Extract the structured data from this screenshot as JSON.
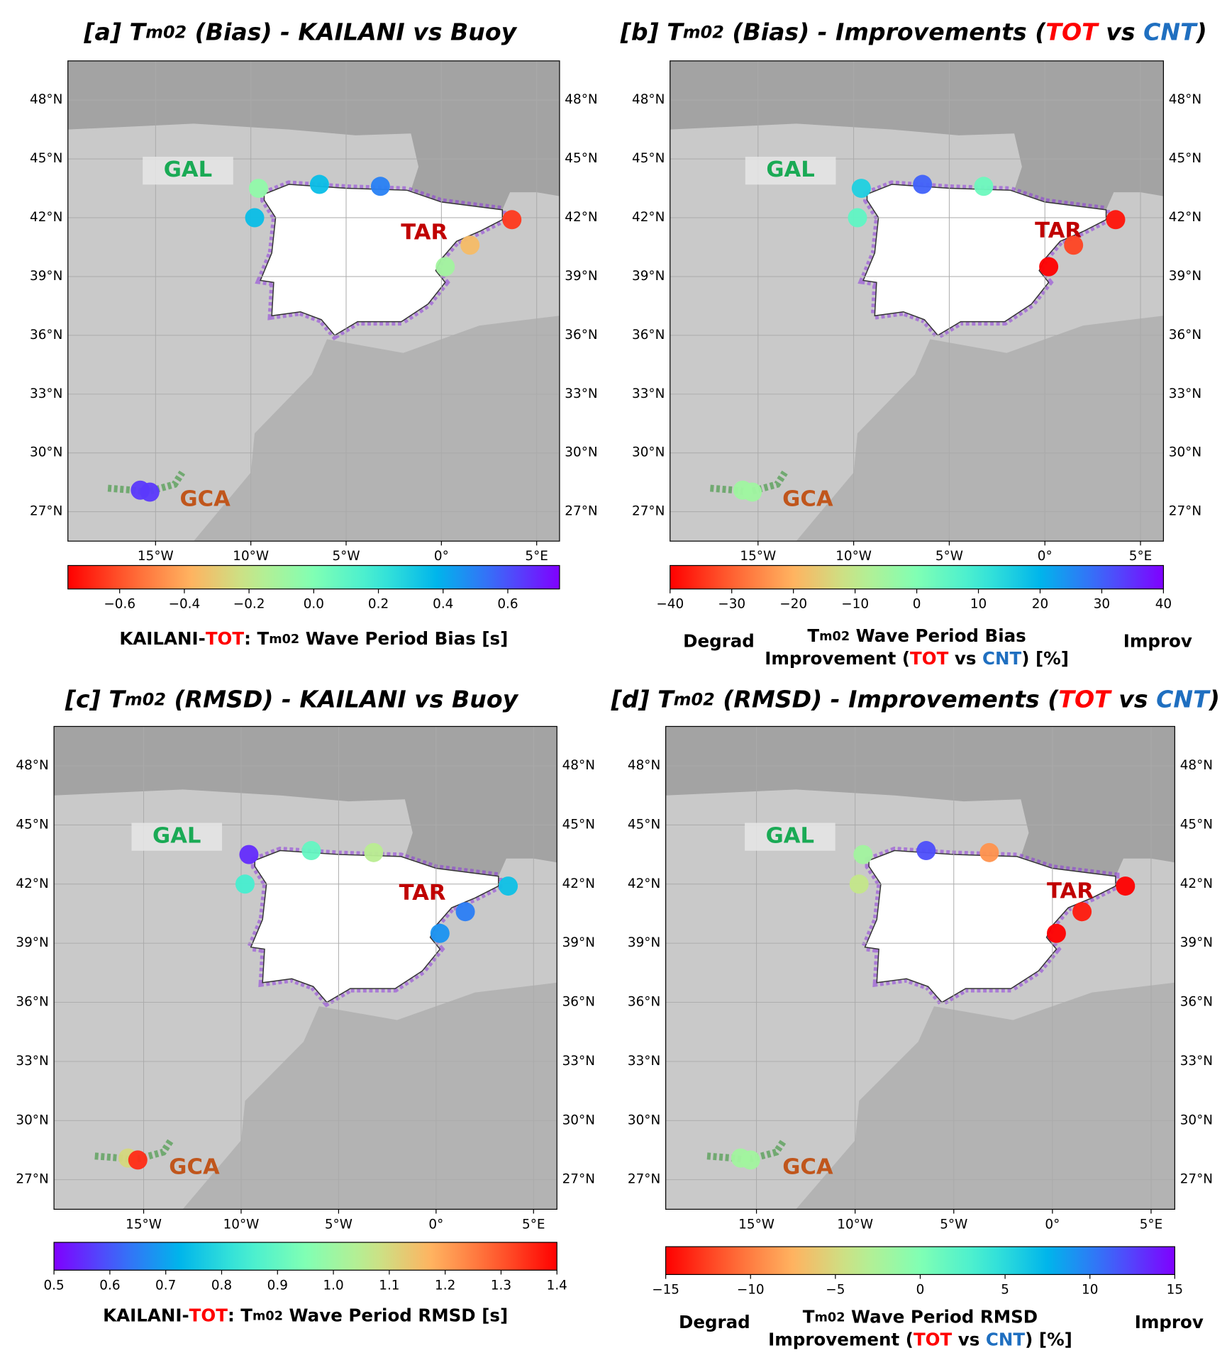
{
  "chart_data": [
    {
      "type": "map",
      "title": [
        {
          "text": "[a] T"
        },
        {
          "text": "m02",
          "small": true
        },
        {
          "text": " (Bias) - KAILANI vs Buoy"
        }
      ],
      "xlim": [
        -19.6,
        6.2
      ],
      "xticks": [
        {
          "value": -15,
          "label": "15°W"
        },
        {
          "value": -10,
          "label": "10°W"
        },
        {
          "value": -5,
          "label": "5°W"
        },
        {
          "value": 0,
          "label": "0°"
        },
        {
          "value": 5,
          "label": "5°E"
        }
      ],
      "ylim": [
        25.5,
        50
      ],
      "yticks": [
        {
          "value": 27,
          "label": "27°N"
        },
        {
          "value": 30,
          "label": "30°N"
        },
        {
          "value": 33,
          "label": "33°N"
        },
        {
          "value": 36,
          "label": "36°N"
        },
        {
          "value": 39,
          "label": "39°N"
        },
        {
          "value": 42,
          "label": "42°N"
        },
        {
          "value": 45,
          "label": "45°N"
        },
        {
          "value": 48,
          "label": "48°N"
        }
      ],
      "grid": true,
      "regions": [
        {
          "text": "GAL",
          "color": "#1aaa55"
        },
        {
          "text": "TAR",
          "color": "#c00000"
        },
        {
          "text": "GCA",
          "color": "#c0561c"
        }
      ],
      "stations": {
        "x": [
          -9.6,
          -9.8,
          -6.4,
          -3.2,
          3.7,
          1.5,
          0.2,
          -15.8,
          -15.3
        ],
        "y": [
          43.5,
          42.0,
          43.7,
          43.6,
          41.9,
          40.6,
          39.5,
          28.1,
          28.0
        ],
        "values": [
          -0.05,
          0.35,
          0.35,
          0.5,
          -0.65,
          -0.35,
          -0.1,
          0.65,
          0.65
        ]
      },
      "colorbar": {
        "cmap": "rainbow_r",
        "lim": [
          -0.76,
          0.76
        ],
        "ticks": [
          {
            "value": -0.6,
            "label": "−0.6"
          },
          {
            "value": -0.4,
            "label": "−0.4"
          },
          {
            "value": -0.2,
            "label": "−0.2"
          },
          {
            "value": 0,
            "label": "0.0"
          },
          0.2,
          0.4,
          0.6
        ],
        "label": [
          [
            {
              "text": "KAILANI-"
            },
            {
              "text": "TOT",
              "color": "#ff0000"
            },
            {
              "text": ": T"
            },
            {
              "text": "m02",
              "small": true
            },
            {
              "text": " Wave Period Bias [s]"
            }
          ]
        ]
      }
    },
    {
      "type": "map",
      "title": [
        {
          "text": "[b] T"
        },
        {
          "text": "m02",
          "small": true
        },
        {
          "text": " (Bias) - Improvements ("
        },
        {
          "text": "TOT",
          "color": "#ff0000"
        },
        {
          "text": " vs "
        },
        {
          "text": "CNT",
          "color": "#1f6fc0"
        },
        {
          "text": ")"
        }
      ],
      "xlim": [
        -19.6,
        6.2
      ],
      "xticks": [
        {
          "value": -15,
          "label": "15°W"
        },
        {
          "value": -10,
          "label": "10°W"
        },
        {
          "value": -5,
          "label": "5°W"
        },
        {
          "value": 0,
          "label": "0°"
        },
        {
          "value": 5,
          "label": "5°E"
        }
      ],
      "ylim": [
        25.5,
        50
      ],
      "yticks": [
        {
          "value": 27,
          "label": "27°N"
        },
        {
          "value": 30,
          "label": "30°N"
        },
        {
          "value": 33,
          "label": "33°N"
        },
        {
          "value": 36,
          "label": "36°N"
        },
        {
          "value": 39,
          "label": "39°N"
        },
        {
          "value": 42,
          "label": "42°N"
        },
        {
          "value": 45,
          "label": "45°N"
        },
        {
          "value": 48,
          "label": "48°N"
        }
      ],
      "grid": true,
      "regions": [
        {
          "text": "GAL",
          "color": "#1aaa55"
        },
        {
          "text": "TAR",
          "color": "#c00000"
        },
        {
          "text": "GCA",
          "color": "#c0561c"
        }
      ],
      "stations": {
        "x": [
          -9.6,
          -9.8,
          -6.4,
          -3.2,
          3.7,
          1.5,
          0.2,
          -15.8,
          -15.3
        ],
        "y": [
          43.5,
          42.0,
          43.7,
          43.6,
          41.9,
          40.6,
          39.5,
          28.1,
          28.0
        ],
        "values": [
          15,
          5,
          30,
          3,
          -38,
          -33,
          -40,
          -5,
          -5
        ]
      },
      "colorbar": {
        "cmap": "rainbow_r",
        "lim": [
          -40,
          40
        ],
        "ticks": [
          {
            "value": -40,
            "label": "−40"
          },
          {
            "value": -30,
            "label": "−30"
          },
          {
            "value": -20,
            "label": "−20"
          },
          {
            "value": -10,
            "label": "−10"
          },
          0,
          10,
          20,
          30,
          40
        ],
        "label": [
          [
            {
              "text": "T"
            },
            {
              "text": "m02",
              "small": true
            },
            {
              "text": " Wave Period Bias"
            }
          ],
          [
            {
              "text": "Improvement ("
            },
            {
              "text": "TOT",
              "color": "#ff0000"
            },
            {
              "text": " vs "
            },
            {
              "text": "CNT",
              "color": "#1f6fc0"
            },
            {
              "text": ") [%]"
            }
          ]
        ],
        "left": "Degrad",
        "right": "Improv"
      }
    },
    {
      "type": "map",
      "title": [
        {
          "text": "[c] T"
        },
        {
          "text": "m02",
          "small": true
        },
        {
          "text": " (RMSD) - KAILANI vs Buoy"
        }
      ],
      "xlim": [
        -19.6,
        6.2
      ],
      "xticks": [
        {
          "value": -15,
          "label": "15°W"
        },
        {
          "value": -10,
          "label": "10°W"
        },
        {
          "value": -5,
          "label": "5°W"
        },
        {
          "value": 0,
          "label": "0°"
        },
        {
          "value": 5,
          "label": "5°E"
        }
      ],
      "ylim": [
        25.5,
        50
      ],
      "yticks": [
        {
          "value": 27,
          "label": "27°N"
        },
        {
          "value": 30,
          "label": "30°N"
        },
        {
          "value": 33,
          "label": "33°N"
        },
        {
          "value": 36,
          "label": "36°N"
        },
        {
          "value": 39,
          "label": "39°N"
        },
        {
          "value": 42,
          "label": "42°N"
        },
        {
          "value": 45,
          "label": "45°N"
        },
        {
          "value": 48,
          "label": "48°N"
        }
      ],
      "grid": true,
      "regions": [
        {
          "text": "GAL",
          "color": "#1aaa55"
        },
        {
          "text": "TAR",
          "color": "#c00000"
        },
        {
          "text": "GCA",
          "color": "#c0561c"
        }
      ],
      "stations": {
        "x": [
          -9.6,
          -9.8,
          -6.4,
          -3.2,
          3.7,
          1.5,
          0.2,
          -15.8,
          -15.3
        ],
        "y": [
          43.5,
          42.0,
          43.7,
          43.6,
          41.9,
          40.6,
          39.5,
          28.1,
          28.0
        ],
        "values": [
          0.55,
          0.85,
          0.9,
          1.05,
          0.75,
          0.65,
          0.68,
          1.1,
          1.35
        ]
      },
      "colorbar": {
        "cmap": "rainbow",
        "lim": [
          0.5,
          1.4
        ],
        "ticks": [
          0.5,
          0.6,
          0.7,
          0.8,
          0.9,
          {
            "value": 1,
            "label": "1.0"
          },
          1.1,
          1.2,
          1.3,
          1.4
        ],
        "label": [
          [
            {
              "text": "KAILANI-"
            },
            {
              "text": "TOT",
              "color": "#ff0000"
            },
            {
              "text": ": T"
            },
            {
              "text": "m02",
              "small": true
            },
            {
              "text": " Wave Period RMSD [s]"
            }
          ]
        ]
      }
    },
    {
      "type": "map",
      "title": [
        {
          "text": "[d] T"
        },
        {
          "text": "m02",
          "small": true
        },
        {
          "text": " (RMSD) - Improvements ("
        },
        {
          "text": "TOT",
          "color": "#ff0000"
        },
        {
          "text": " vs "
        },
        {
          "text": "CNT",
          "color": "#1f6fc0"
        },
        {
          "text": ")"
        }
      ],
      "xlim": [
        -19.6,
        6.2
      ],
      "xticks": [
        {
          "value": -15,
          "label": "15°W"
        },
        {
          "value": -10,
          "label": "10°W"
        },
        {
          "value": -5,
          "label": "5°W"
        },
        {
          "value": 0,
          "label": "0°"
        },
        {
          "value": 5,
          "label": "5°E"
        }
      ],
      "ylim": [
        25.5,
        50
      ],
      "yticks": [
        {
          "value": 27,
          "label": "27°N"
        },
        {
          "value": 30,
          "label": "30°N"
        },
        {
          "value": 33,
          "label": "33°N"
        },
        {
          "value": 36,
          "label": "36°N"
        },
        {
          "value": 39,
          "label": "39°N"
        },
        {
          "value": 42,
          "label": "42°N"
        },
        {
          "value": 45,
          "label": "45°N"
        },
        {
          "value": 48,
          "label": "48°N"
        }
      ],
      "grid": true,
      "regions": [
        {
          "text": "GAL",
          "color": "#1aaa55"
        },
        {
          "text": "TAR",
          "color": "#c00000"
        },
        {
          "text": "GCA",
          "color": "#c0561c"
        }
      ],
      "stations": {
        "x": [
          -9.6,
          -9.8,
          -6.4,
          -3.2,
          3.7,
          1.5,
          0.2,
          -15.8,
          -15.3
        ],
        "y": [
          43.5,
          42.0,
          43.7,
          43.6,
          41.9,
          40.6,
          39.5,
          28.1,
          28.0
        ],
        "values": [
          -2,
          -4,
          12,
          -9,
          -15,
          -14,
          -15,
          -2,
          -2
        ]
      },
      "colorbar": {
        "cmap": "rainbow_r",
        "lim": [
          -15,
          15
        ],
        "ticks": [
          {
            "value": -15,
            "label": "−15"
          },
          {
            "value": -10,
            "label": "−10"
          },
          {
            "value": -5,
            "label": "−5"
          },
          0,
          5,
          10,
          15
        ],
        "label": [
          [
            {
              "text": "T"
            },
            {
              "text": "m02",
              "small": true
            },
            {
              "text": " Wave Period RMSD"
            }
          ],
          [
            {
              "text": "Improvement ("
            },
            {
              "text": "TOT",
              "color": "#ff0000"
            },
            {
              "text": " vs "
            },
            {
              "text": "CNT",
              "color": "#1f6fc0"
            },
            {
              "text": ") [%]"
            }
          ]
        ],
        "left": "Degrad",
        "right": "Improv"
      }
    }
  ]
}
